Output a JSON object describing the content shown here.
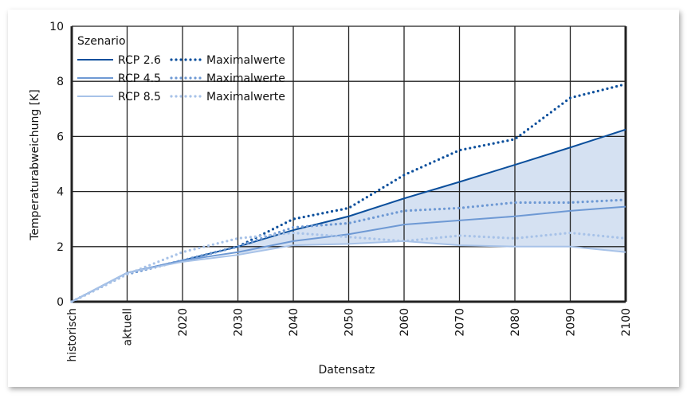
{
  "chart_data": {
    "type": "line",
    "title": "",
    "xlabel": "Datensatz",
    "ylabel": "Temperaturabweichung [K]",
    "ylim": [
      0,
      10
    ],
    "yticks": [
      0,
      2,
      4,
      6,
      8,
      10
    ],
    "grid": true,
    "categories": [
      "historisch",
      "aktuell",
      "2020",
      "2030",
      "2040",
      "2050",
      "2060",
      "2070",
      "2080",
      "2090",
      "2100"
    ],
    "legend": {
      "title": "Szenario",
      "placement": "top-left"
    },
    "series": [
      {
        "name": "RCP 2.6",
        "style": "solid",
        "color": "#0b4f9c",
        "values": [
          0,
          1.05,
          1.5,
          2.0,
          2.6,
          3.1,
          3.75,
          4.35,
          4.97,
          5.6,
          6.25
        ]
      },
      {
        "name": "Maximalwerte",
        "style": "dotted",
        "color": "#0b4f9c",
        "values": [
          0,
          1.0,
          1.5,
          2.0,
          3.0,
          3.4,
          4.6,
          5.5,
          5.9,
          7.4,
          7.9
        ]
      },
      {
        "name": "RCP 4.5",
        "style": "solid",
        "color": "#6e99d4",
        "values": [
          0,
          1.05,
          1.5,
          1.8,
          2.2,
          2.45,
          2.8,
          2.95,
          3.1,
          3.3,
          3.45
        ]
      },
      {
        "name": "Maximalwerte",
        "style": "dotted",
        "color": "#6e99d4",
        "values": [
          0,
          1.0,
          1.5,
          2.0,
          2.7,
          2.85,
          3.3,
          3.4,
          3.6,
          3.6,
          3.7
        ]
      },
      {
        "name": "RCP 8.5",
        "style": "solid",
        "color": "#a7c2e8",
        "values": [
          0,
          1.05,
          1.45,
          1.7,
          2.05,
          2.1,
          2.2,
          2.05,
          2.0,
          2.0,
          1.8
        ]
      },
      {
        "name": "Maximalwerte",
        "style": "dotted",
        "color": "#a7c2e8",
        "values": [
          0,
          1.0,
          1.8,
          2.3,
          2.5,
          2.35,
          2.2,
          2.4,
          2.3,
          2.5,
          2.3
        ]
      }
    ],
    "band": {
      "between": [
        "RCP 2.6",
        "RCP 8.5"
      ],
      "color": "#d5e1f2"
    }
  }
}
